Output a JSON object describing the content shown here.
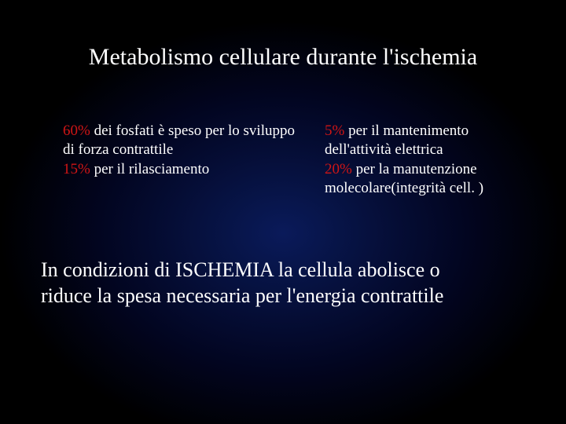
{
  "title": "Metabolismo cellulare durante l'ischemia",
  "left": {
    "pct1": "60%",
    "line1_rest": " dei fosfati è speso per lo sviluppo",
    "line2": "di forza contrattile",
    "pct2": "15%",
    "line3_rest": " per il rilasciamento"
  },
  "right": {
    "pct1": "5%",
    "line1_rest": " per il mantenimento",
    "line2": "dell'attività elettrica",
    "pct2": "20%",
    "line3_rest": " per la manutenzione",
    "line4": "molecolare(integrità cell. )"
  },
  "bottom": {
    "line1": "In condizioni di ISCHEMIA la cellula abolisce o",
    "line2": "riduce la spesa necessaria per l'energia contrattile"
  },
  "colors": {
    "highlight": "#d01515",
    "text": "#ffffff"
  }
}
